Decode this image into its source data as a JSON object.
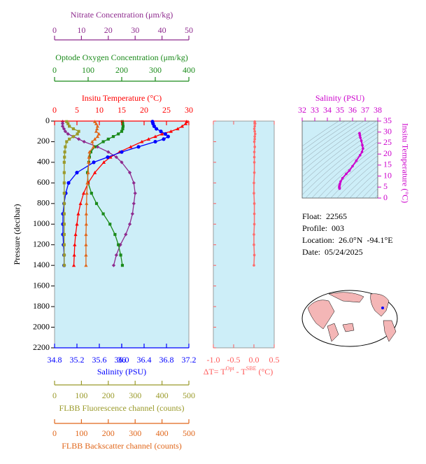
{
  "chart_data": [
    {
      "type": "profile",
      "ylabel": "Pressure (decibar)",
      "ylim": [
        0,
        2200
      ],
      "y_inverted": true,
      "yticks": [
        0,
        200,
        400,
        600,
        800,
        1000,
        1200,
        1400,
        1600,
        1800,
        2000,
        2200
      ],
      "background": "#cdeef8",
      "pressure": [
        5,
        25,
        50,
        75,
        100,
        125,
        150,
        175,
        200,
        250,
        300,
        350,
        400,
        500,
        600,
        700,
        800,
        900,
        1000,
        1100,
        1200,
        1300,
        1400
      ],
      "axes": [
        {
          "xlabel": "Nitrate Concentration (μm/kg)",
          "xlim": [
            0,
            50
          ],
          "xticks": [
            0,
            10,
            20,
            30,
            40,
            50
          ],
          "color": "#8e2a8e",
          "marker": "diamond",
          "values": [
            3,
            3,
            3,
            3.5,
            4,
            5,
            7,
            9,
            11,
            16,
            20,
            23,
            25,
            28,
            29.5,
            30,
            29.5,
            29,
            28,
            26.5,
            24.5,
            23,
            22
          ]
        },
        {
          "xlabel": "Optode Oxygen Concentration (μm/kg)",
          "xlim": [
            0,
            400
          ],
          "xticks": [
            0,
            100,
            200,
            300,
            400
          ],
          "color": "#1a8a1a",
          "marker": "square",
          "values": [
            202,
            203,
            204,
            203,
            200,
            190,
            175,
            160,
            145,
            120,
            108,
            104,
            102,
            98,
            100,
            110,
            125,
            145,
            165,
            180,
            190,
            197,
            202
          ]
        },
        {
          "xlabel": "Insitu Temperature (°C)",
          "xlim": [
            0,
            30
          ],
          "xticks": [
            0,
            5,
            10,
            15,
            20,
            25,
            30
          ],
          "color": "#ff0000",
          "marker": "triangle",
          "values": [
            29.5,
            29.3,
            28.5,
            27.5,
            26,
            24,
            22.5,
            21,
            19.5,
            17,
            14.5,
            12.5,
            11,
            9,
            7.5,
            6.5,
            5.8,
            5.3,
            5,
            4.7,
            4.5,
            4.4,
            4.3
          ]
        },
        {
          "xlabel": "Salinity (PSU)",
          "xlim": [
            34.8,
            37.2
          ],
          "xticks": [
            34.8,
            35.2,
            35.6,
            36.0,
            {
              "value": 36.0,
              "label": "36.0"
            },
            36.4,
            36.8,
            37.2
          ],
          "color": "#0000ff",
          "marker": "circle",
          "values": [
            36.55,
            36.56,
            36.58,
            36.62,
            36.7,
            36.78,
            36.83,
            36.75,
            36.6,
            36.3,
            36.0,
            35.75,
            35.5,
            35.2,
            35.05,
            35.0,
            34.97,
            34.95,
            34.95,
            34.95,
            34.96,
            34.97,
            34.97
          ]
        },
        {
          "xlabel": "FLBB Fluorescence channel (counts)",
          "xlim": [
            0,
            500
          ],
          "xticks": [
            0,
            100,
            200,
            300,
            400,
            500
          ],
          "color": "#9a9a2a",
          "marker": "square",
          "values": [
            45,
            50,
            55,
            70,
            90,
            85,
            70,
            55,
            45,
            40,
            38,
            37,
            36,
            36,
            36,
            36,
            36,
            36,
            36,
            36,
            36,
            36,
            36
          ]
        },
        {
          "xlabel": "FLBB Backscatter channel (counts)",
          "xlim": [
            0,
            500
          ],
          "xticks": [
            0,
            100,
            200,
            300,
            400,
            500
          ],
          "color": "#e0661a",
          "marker": "triangle",
          "values": [
            150,
            155,
            160,
            158,
            155,
            165,
            160,
            150,
            140,
            145,
            130,
            128,
            127,
            125,
            122,
            120,
            119,
            118,
            118,
            117,
            117,
            117,
            117
          ]
        }
      ]
    },
    {
      "type": "profile_delta",
      "xlabel": [
        "ΔT= T",
        "Opt",
        " - T",
        "SBE",
        " (°C)"
      ],
      "xlabel_color": "#ff5a5a",
      "xlim": [
        -1.0,
        0.5
      ],
      "xticks": [
        {
          "value": -1.0,
          "label": "-1.0"
        },
        {
          "value": -0.5,
          "label": "-0.5"
        },
        {
          "value": 0,
          "label": "0.0"
        },
        {
          "value": 0.5,
          "label": "0.5"
        }
      ],
      "ylim": [
        0,
        2200
      ],
      "y_inverted": true,
      "yticks": [
        0,
        200,
        400,
        600,
        800,
        1000,
        1200,
        1400,
        1600,
        1800,
        2000,
        2200
      ],
      "background": "#cdeef8",
      "color": "#ff6b6b",
      "pressure": [
        5,
        25,
        50,
        75,
        100,
        125,
        150,
        175,
        200,
        250,
        300,
        350,
        400,
        500,
        600,
        700,
        800,
        900,
        1000,
        1100,
        1200,
        1300,
        1400
      ],
      "values": [
        0.02,
        0.03,
        0.02,
        0.01,
        0.02,
        0.03,
        0.02,
        0.02,
        0.01,
        0.02,
        0.01,
        0.01,
        0.01,
        0.01,
        0.0,
        0.0,
        0.01,
        0.01,
        0.01,
        0.0,
        0.0,
        0.01,
        0.0
      ]
    },
    {
      "type": "ts",
      "xlabel": "Salinity (PSU)",
      "ylabel": "Insitu Temperature (°C)",
      "color": "#cc00cc",
      "axis_color": "#cc00cc",
      "xlim": [
        32,
        38
      ],
      "xticks": [
        32,
        33,
        34,
        35,
        36,
        37,
        38
      ],
      "ylim": [
        0,
        35
      ],
      "yticks": [
        0,
        5,
        10,
        15,
        20,
        25,
        30,
        35
      ],
      "background": "#cdeef8",
      "x": [
        36.55,
        36.56,
        36.58,
        36.62,
        36.7,
        36.78,
        36.83,
        36.75,
        36.6,
        36.3,
        36.0,
        35.75,
        35.5,
        35.2,
        35.05,
        35.0,
        34.97,
        34.95,
        34.95,
        34.95,
        34.96,
        34.97,
        34.97
      ],
      "values": [
        29.5,
        29.3,
        28.5,
        27.5,
        26,
        24,
        22.5,
        21,
        19.5,
        17,
        14.5,
        12.5,
        11,
        9,
        7.5,
        6.5,
        5.8,
        5.3,
        5,
        4.7,
        4.5,
        4.4,
        4.3
      ]
    }
  ],
  "info": {
    "rows": [
      [
        "Float:",
        "22565"
      ],
      [
        "Profile:",
        "003"
      ],
      [
        "Location:",
        "26.0°N",
        "-94.1°E"
      ],
      [
        "Date:",
        "05/24/2025"
      ]
    ]
  }
}
